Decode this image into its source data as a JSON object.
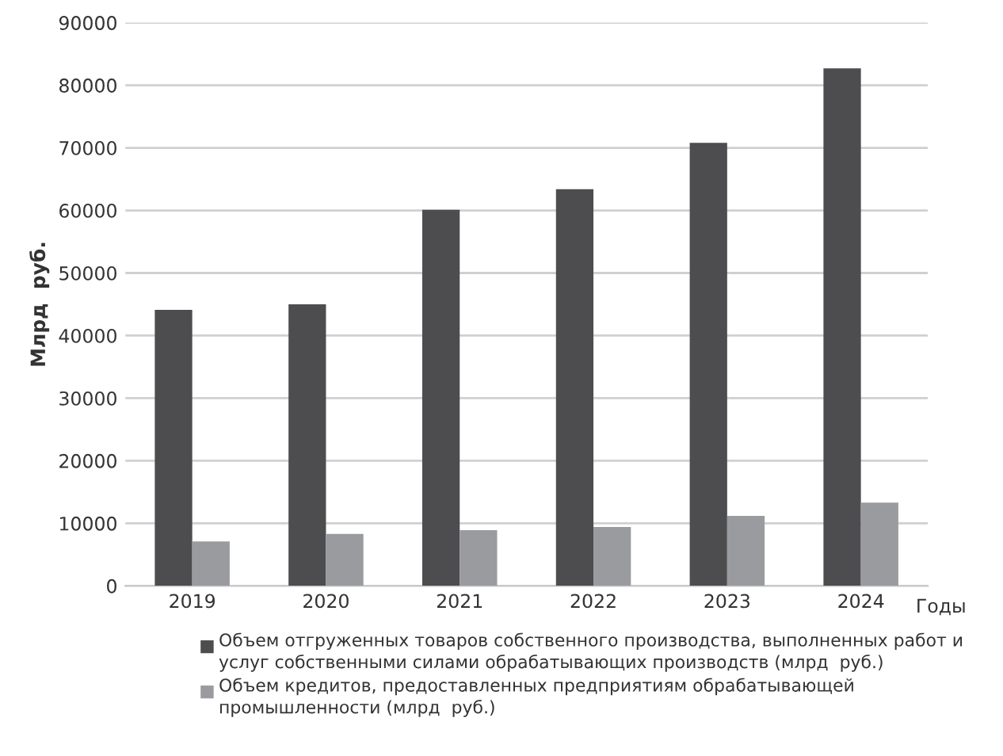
{
  "chart_data": {
    "type": "bar",
    "ylabel": "Млрд  руб.",
    "xlabel": "Годы",
    "categories": [
      "2019",
      "2020",
      "2021",
      "2022",
      "2023",
      "2024"
    ],
    "series": [
      {
        "name": "Объем отгруженных товаров собственного производства, выполненных работ и услуг собственными силами обрабатывающих производств (млрд  руб.)",
        "color": "#4d4d4f",
        "values": [
          44100,
          45000,
          60100,
          63400,
          70800,
          82700
        ]
      },
      {
        "name": "Объем кредитов, предоставленных предприятиям обрабатывающей промышленности (млрд  руб.)",
        "color": "#9a9b9e",
        "values": [
          7100,
          8300,
          8900,
          9400,
          11200,
          13300
        ]
      }
    ],
    "ylim": [
      0,
      90000
    ],
    "yticks": [
      0,
      10000,
      20000,
      30000,
      40000,
      50000,
      60000,
      70000,
      80000,
      90000
    ],
    "grid": "y",
    "legend": "bottom"
  }
}
